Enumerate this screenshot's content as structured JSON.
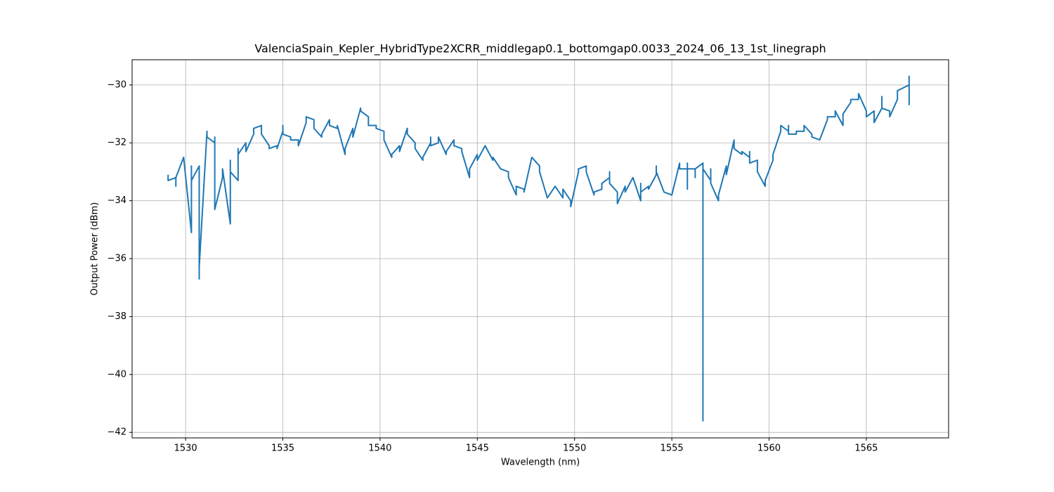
{
  "chart_data": {
    "type": "line",
    "title": "ValenciaSpain_Kepler_HybridType2XCRR_middlegap0.1_bottomgap0.0033_2024_06_13_1st_linegraph",
    "xlabel": "Wavelength (nm)",
    "ylabel": "Output Power (dBm)",
    "color": "#1f77b4",
    "grid": true,
    "xlim": [
      1527.25,
      1569.23
    ],
    "ylim": [
      -42.19,
      -29.13
    ],
    "xticks": [
      1530,
      1535,
      1540,
      1545,
      1550,
      1555,
      1560,
      1565
    ],
    "yticks": [
      {
        "value": -42,
        "label": "−42"
      },
      {
        "value": -40,
        "label": "−40"
      },
      {
        "value": -38,
        "label": "−38"
      },
      {
        "value": -36,
        "label": "−36"
      },
      {
        "value": -34,
        "label": "−34"
      },
      {
        "value": -32,
        "label": "−32"
      },
      {
        "value": -30,
        "label": "−30"
      }
    ],
    "x": [
      1529.1,
      1529.1,
      1529.5,
      1529.5,
      1529.5,
      1529.9,
      1530.3,
      1530.3,
      1530.3,
      1530.7,
      1530.7,
      1530.7,
      1531.1,
      1531.1,
      1531.5,
      1531.5,
      1531.5,
      1531.9,
      1531.9,
      1532.3,
      1532.3,
      1532.3,
      1532.7,
      1532.7,
      1532.7,
      1533.1,
      1533.1,
      1533.5,
      1533.5,
      1533.9,
      1533.9,
      1534.3,
      1534.3,
      1534.7,
      1534.7,
      1535.0,
      1535.0,
      1535.0,
      1535.4,
      1535.4,
      1535.8,
      1535.8,
      1536.2,
      1536.2,
      1536.6,
      1536.6,
      1537.0,
      1537.0,
      1537.4,
      1537.4,
      1537.8,
      1537.8,
      1538.2,
      1538.2,
      1538.6,
      1538.6,
      1539.0,
      1539.0,
      1539.4,
      1539.4,
      1539.8,
      1539.8,
      1540.2,
      1540.2,
      1540.6,
      1540.6,
      1541.0,
      1541.0,
      1541.4,
      1541.4,
      1541.8,
      1541.8,
      1542.2,
      1542.2,
      1542.6,
      1542.6,
      1542.6,
      1543.0,
      1543.0,
      1543.4,
      1543.4,
      1543.8,
      1543.8,
      1544.2,
      1544.2,
      1544.6,
      1544.6,
      1545.0,
      1545.0,
      1545.4,
      1545.8,
      1545.8,
      1546.2,
      1546.6,
      1546.6,
      1547.0,
      1547.0,
      1547.4,
      1547.4,
      1547.8,
      1548.2,
      1548.2,
      1548.6,
      1549.0,
      1549.4,
      1549.4,
      1549.8,
      1549.8,
      1550.2,
      1550.2,
      1550.6,
      1550.6,
      1551.0,
      1551.0,
      1551.4,
      1551.4,
      1551.8,
      1551.8,
      1551.8,
      1552.2,
      1552.2,
      1552.6,
      1552.6,
      1553.0,
      1553.4,
      1553.4,
      1553.4,
      1553.8,
      1553.8,
      1554.2,
      1554.2,
      1554.2,
      1554.6,
      1555.0,
      1555.4,
      1555.4,
      1555.8,
      1555.8,
      1555.8,
      1555.8,
      1556.2,
      1556.2,
      1556.2,
      1556.6,
      1556.6,
      1556.6,
      1557.0,
      1557.0,
      1557.0,
      1557.4,
      1557.4,
      1557.8,
      1557.8,
      1558.2,
      1558.2,
      1558.6,
      1558.6,
      1559.0,
      1559.0,
      1559.0,
      1559.4,
      1559.4,
      1559.8,
      1559.8,
      1560.2,
      1560.2,
      1560.6,
      1560.6,
      1561.0,
      1561.0,
      1561.0,
      1561.4,
      1561.4,
      1561.8,
      1561.8,
      1562.2,
      1562.2,
      1562.6,
      1563.0,
      1563.0,
      1563.4,
      1563.4,
      1563.8,
      1563.8,
      1564.2,
      1564.2,
      1564.6,
      1564.6,
      1565.0,
      1565.0,
      1565.4,
      1565.4,
      1565.8,
      1565.8,
      1565.8,
      1566.2,
      1566.2,
      1566.6,
      1566.6,
      1567.2,
      1567.2,
      1567.2
    ],
    "values": [
      -33.1,
      -33.3,
      -33.2,
      -33.5,
      -33.2,
      -32.5,
      -35.1,
      -32.8,
      -33.3,
      -32.8,
      -36.7,
      -36.3,
      -31.6,
      -31.8,
      -32.0,
      -31.8,
      -34.3,
      -33.2,
      -32.9,
      -34.8,
      -32.6,
      -33.0,
      -33.3,
      -32.2,
      -32.4,
      -32.0,
      -32.3,
      -31.7,
      -31.5,
      -31.4,
      -31.7,
      -32.1,
      -32.2,
      -32.1,
      -32.2,
      -31.6,
      -31.4,
      -31.7,
      -31.8,
      -31.9,
      -31.9,
      -32.1,
      -31.3,
      -31.1,
      -31.2,
      -31.5,
      -31.8,
      -31.7,
      -31.2,
      -31.4,
      -31.5,
      -31.4,
      -32.4,
      -32.2,
      -31.5,
      -31.8,
      -30.8,
      -30.9,
      -31.1,
      -31.4,
      -31.4,
      -31.5,
      -31.6,
      -31.9,
      -32.5,
      -32.4,
      -32.1,
      -32.3,
      -31.5,
      -31.7,
      -32.0,
      -32.2,
      -32.6,
      -32.5,
      -32.0,
      -31.8,
      -32.1,
      -32.0,
      -31.8,
      -32.4,
      -32.3,
      -31.9,
      -32.1,
      -32.2,
      -32.3,
      -33.2,
      -32.9,
      -32.4,
      -32.6,
      -32.1,
      -32.6,
      -32.5,
      -32.9,
      -33.0,
      -33.2,
      -33.8,
      -33.5,
      -33.6,
      -33.7,
      -32.5,
      -32.8,
      -33.0,
      -33.9,
      -33.5,
      -33.9,
      -33.6,
      -34.0,
      -34.2,
      -33.0,
      -32.9,
      -32.8,
      -33.0,
      -33.8,
      -33.7,
      -33.6,
      -33.4,
      -33.2,
      -33.0,
      -33.4,
      -33.7,
      -34.1,
      -33.5,
      -33.7,
      -33.2,
      -34.0,
      -33.4,
      -33.7,
      -33.5,
      -33.6,
      -33.1,
      -32.8,
      -33.0,
      -33.7,
      -33.8,
      -32.7,
      -32.9,
      -32.9,
      -32.7,
      -33.6,
      -32.9,
      -32.9,
      -33.2,
      -32.9,
      -32.7,
      -41.6,
      -32.9,
      -33.3,
      -32.9,
      -33.4,
      -34.0,
      -33.8,
      -32.8,
      -33.1,
      -31.9,
      -32.2,
      -32.4,
      -32.3,
      -32.5,
      -32.3,
      -32.7,
      -32.6,
      -33.0,
      -33.5,
      -33.3,
      -32.6,
      -32.4,
      -31.6,
      -31.4,
      -31.6,
      -31.4,
      -31.7,
      -31.7,
      -31.6,
      -31.6,
      -31.4,
      -31.7,
      -31.8,
      -31.9,
      -31.2,
      -31.1,
      -31.1,
      -30.9,
      -31.4,
      -31.0,
      -30.6,
      -30.5,
      -30.5,
      -30.3,
      -30.9,
      -31.1,
      -30.9,
      -31.3,
      -30.8,
      -30.4,
      -30.8,
      -30.9,
      -31.1,
      -30.5,
      -30.2,
      -30.0,
      -29.7,
      -30.7
    ]
  }
}
